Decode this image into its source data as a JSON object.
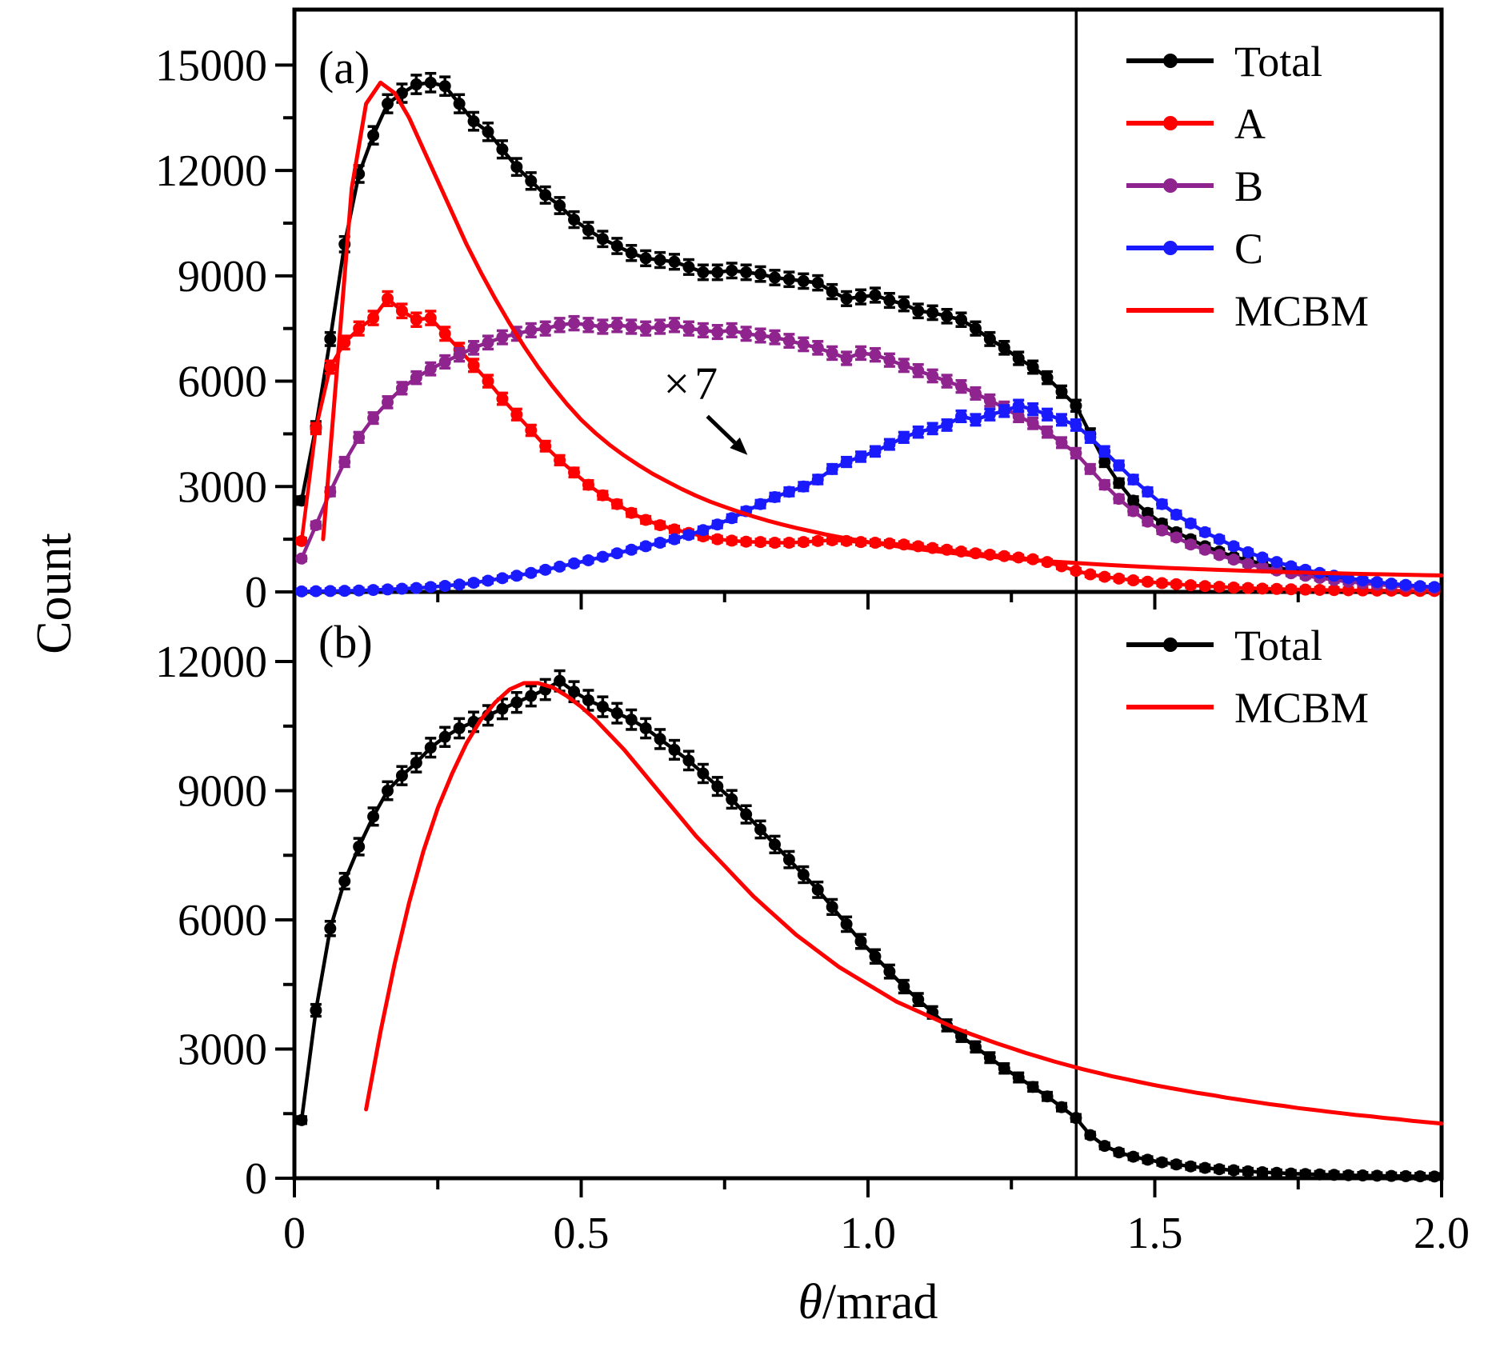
{
  "figure": {
    "ylabel": "Count",
    "xlabel_italic": "θ",
    "xlabel_rest": "/mrad",
    "background": "#ffffff",
    "axis_color": "#000000",
    "cut_line_x": 1.363,
    "x_tick_labels": [
      "0",
      "0.5",
      "1.0",
      "1.5",
      "2.0"
    ],
    "x_ticks": [
      0,
      0.5,
      1.0,
      1.5,
      2.0
    ],
    "x_minor_ticks": [
      0.25,
      0.75,
      1.25,
      1.75
    ],
    "colors": {
      "total": "#000000",
      "A": "#ff0000",
      "B": "#8f248f",
      "C": "#1a1aff",
      "MCBM": "#ff0000"
    }
  },
  "chart_data": [
    {
      "type": "line",
      "tag": "(a)",
      "xlabel": "θ/mrad",
      "ylabel": "Count",
      "xlim": [
        0,
        2
      ],
      "ylim": [
        0,
        16580
      ],
      "yticks": [
        0,
        3000,
        6000,
        9000,
        12000,
        15000
      ],
      "yminor": [
        1500,
        4500,
        7500,
        10500,
        13500
      ],
      "legend_position": "top-right",
      "grid": false,
      "annotation": {
        "text": "×7",
        "x": 0.695,
        "y": 5900,
        "arrow": {
          "x1": 0.72,
          "y1": 5000,
          "x2": 0.79,
          "y2": 3900
        }
      },
      "cut_line_x": 1.363,
      "series": [
        {
          "name": "Total",
          "color": "#000000",
          "marker": true,
          "errorbars": true,
          "x_start": 0.0125,
          "x_step": 0.025,
          "values": [
            2600,
            4700,
            7200,
            9900,
            11900,
            13000,
            13900,
            14200,
            14450,
            14500,
            14400,
            13900,
            13400,
            13100,
            12600,
            12100,
            11700,
            11300,
            11000,
            10600,
            10300,
            10050,
            9850,
            9650,
            9500,
            9450,
            9400,
            9250,
            9100,
            9100,
            9150,
            9100,
            9050,
            8950,
            8900,
            8850,
            8800,
            8550,
            8350,
            8400,
            8450,
            8300,
            8200,
            8000,
            7950,
            7850,
            7750,
            7500,
            7200,
            6950,
            6650,
            6400,
            6100,
            5700,
            5300,
            4500,
            3700,
            3100,
            2600,
            2250,
            1950,
            1700,
            1500,
            1300,
            1150,
            1000,
            900,
            800,
            700,
            620,
            540,
            470,
            400,
            340,
            290,
            240,
            200,
            170,
            145,
            125
          ]
        },
        {
          "name": "A",
          "color": "#ff0000",
          "marker": true,
          "errorbars": true,
          "x_start": 0.0125,
          "x_step": 0.025,
          "values": [
            1450,
            4650,
            6400,
            7100,
            7500,
            7800,
            8350,
            8000,
            7750,
            7800,
            7350,
            6900,
            6450,
            6000,
            5500,
            5050,
            4600,
            4150,
            3750,
            3400,
            3050,
            2750,
            2500,
            2250,
            2050,
            1900,
            1780,
            1680,
            1580,
            1500,
            1460,
            1430,
            1420,
            1400,
            1400,
            1420,
            1450,
            1470,
            1450,
            1420,
            1400,
            1380,
            1350,
            1300,
            1250,
            1200,
            1150,
            1100,
            1060,
            1020,
            980,
            930,
            850,
            730,
            600,
            500,
            430,
            380,
            330,
            290,
            250,
            220,
            190,
            165,
            145,
            125,
            110,
            95,
            85,
            75,
            65,
            58,
            52,
            46,
            42,
            38,
            34,
            31,
            28,
            26
          ]
        },
        {
          "name": "B",
          "color": "#8f248f",
          "marker": true,
          "errorbars": true,
          "x_start": 0.0125,
          "x_step": 0.025,
          "values": [
            950,
            1900,
            2850,
            3700,
            4400,
            4950,
            5400,
            5800,
            6100,
            6350,
            6550,
            6750,
            6950,
            7100,
            7250,
            7350,
            7450,
            7500,
            7600,
            7650,
            7600,
            7550,
            7600,
            7550,
            7500,
            7550,
            7600,
            7500,
            7450,
            7400,
            7450,
            7350,
            7300,
            7250,
            7150,
            7050,
            6950,
            6800,
            6650,
            6800,
            6750,
            6600,
            6450,
            6300,
            6150,
            6000,
            5850,
            5650,
            5450,
            5250,
            5000,
            4800,
            4550,
            4250,
            3950,
            3500,
            3050,
            2650,
            2300,
            2000,
            1750,
            1550,
            1350,
            1200,
            1050,
            920,
            800,
            700,
            610,
            530,
            460,
            400,
            340,
            290,
            250,
            210,
            180,
            155,
            135,
            115
          ]
        },
        {
          "name": "C",
          "color": "#1a1aff",
          "marker": true,
          "errorbars": true,
          "x_start": 0.0125,
          "x_step": 0.025,
          "values": [
            15,
            20,
            25,
            30,
            40,
            55,
            70,
            90,
            110,
            140,
            170,
            210,
            260,
            320,
            390,
            460,
            540,
            630,
            720,
            810,
            900,
            1000,
            1100,
            1200,
            1300,
            1400,
            1500,
            1620,
            1760,
            1920,
            2100,
            2300,
            2500,
            2700,
            2850,
            3000,
            3200,
            3500,
            3700,
            3850,
            4000,
            4200,
            4400,
            4550,
            4650,
            4750,
            5000,
            4900,
            5050,
            5150,
            5300,
            5200,
            5050,
            4900,
            4750,
            4400,
            4000,
            3600,
            3200,
            2850,
            2500,
            2200,
            1950,
            1700,
            1500,
            1300,
            1130,
            980,
            850,
            730,
            630,
            540,
            460,
            390,
            330,
            280,
            235,
            200,
            165,
            140
          ]
        },
        {
          "name": "MCBM",
          "color": "#ff0000",
          "marker": false,
          "errorbars": false,
          "x_start": 0.05,
          "x_step": 0.025,
          "values": [
            1500,
            6500,
            11500,
            13900,
            14500,
            14200,
            13500,
            12600,
            11700,
            10800,
            9900,
            9100,
            8350,
            7650,
            7000,
            6400,
            5850,
            5350,
            4900,
            4520,
            4180,
            3880,
            3610,
            3360,
            3140,
            2930,
            2740,
            2570,
            2420,
            2280,
            2150,
            2030,
            1920,
            1820,
            1730,
            1640,
            1560,
            1490,
            1420,
            1360,
            1300,
            1245,
            1195,
            1145,
            1100,
            1060,
            1020,
            985,
            950,
            920,
            890,
            860,
            835,
            810,
            785,
            762,
            740,
            720,
            700,
            682,
            665,
            650,
            635,
            620,
            605,
            592,
            580,
            567,
            555,
            545,
            535,
            525,
            515,
            507,
            500,
            492,
            485,
            477,
            470
          ]
        }
      ]
    },
    {
      "type": "line",
      "tag": "(b)",
      "xlabel": "θ/mrad",
      "ylabel": "Count",
      "xlim": [
        0,
        2
      ],
      "ylim": [
        0,
        13617
      ],
      "yticks": [
        0,
        3000,
        6000,
        9000,
        12000
      ],
      "yminor": [
        1500,
        4500,
        7500,
        10500
      ],
      "legend_position": "top-right",
      "grid": false,
      "cut_line_x": 1.363,
      "series": [
        {
          "name": "Total",
          "color": "#000000",
          "marker": true,
          "errorbars": true,
          "x_start": 0.0125,
          "x_step": 0.025,
          "values": [
            1350,
            3900,
            5800,
            6900,
            7700,
            8400,
            9000,
            9350,
            9650,
            10000,
            10250,
            10450,
            10600,
            10750,
            10900,
            11050,
            11200,
            11350,
            11550,
            11300,
            11100,
            10950,
            10800,
            10650,
            10450,
            10200,
            9950,
            9700,
            9400,
            9100,
            8800,
            8450,
            8100,
            7750,
            7400,
            7050,
            6700,
            6300,
            5900,
            5500,
            5150,
            4800,
            4450,
            4150,
            3850,
            3550,
            3300,
            3050,
            2800,
            2550,
            2340,
            2120,
            1900,
            1650,
            1400,
            1000,
            750,
            600,
            500,
            430,
            370,
            320,
            275,
            240,
            210,
            185,
            160,
            140,
            125,
            110,
            98,
            88,
            78,
            70,
            64,
            58,
            53,
            48,
            44,
            40
          ]
        },
        {
          "name": "MCBM",
          "color": "#ff0000",
          "marker": false,
          "errorbars": false,
          "x_start": 0.125,
          "x_step": 0.025,
          "values": [
            1600,
            3400,
            5000,
            6400,
            7600,
            8600,
            9400,
            10100,
            10650,
            11050,
            11350,
            11500,
            11500,
            11400,
            11200,
            10950,
            10650,
            10300,
            9950,
            9550,
            9150,
            8750,
            8350,
            7950,
            7600,
            7250,
            6900,
            6550,
            6250,
            5950,
            5650,
            5400,
            5150,
            4900,
            4700,
            4500,
            4300,
            4100,
            3950,
            3800,
            3650,
            3500,
            3370,
            3250,
            3130,
            3020,
            2910,
            2810,
            2710,
            2620,
            2530,
            2450,
            2370,
            2300,
            2230,
            2160,
            2100,
            2040,
            1980,
            1930,
            1870,
            1820,
            1770,
            1720,
            1680,
            1630,
            1590,
            1550,
            1510,
            1470,
            1440,
            1400,
            1370,
            1330,
            1300,
            1270
          ]
        }
      ]
    }
  ]
}
